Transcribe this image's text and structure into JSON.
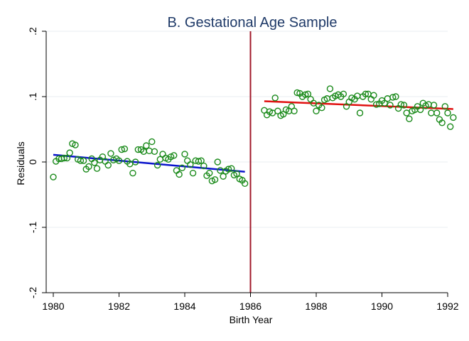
{
  "chart_data": {
    "type": "scatter",
    "title": "B. Gestational Age Sample",
    "xlabel": "Birth Year",
    "ylabel": "Residuals",
    "xlim": [
      1980,
      1992
    ],
    "ylim": [
      -0.2,
      0.2
    ],
    "xticks": [
      1980,
      1982,
      1984,
      1986,
      1988,
      1990,
      1992
    ],
    "xtick_labels": [
      "1980",
      "1982",
      "1984",
      "1986",
      "1988",
      "1990",
      "1992"
    ],
    "yticks": [
      -0.2,
      -0.1,
      0,
      0.1,
      0.2
    ],
    "ytick_labels": [
      "-.2",
      "-.1",
      "0",
      ".1",
      ".2"
    ],
    "grid": "horizontal",
    "cutoff": {
      "x": 1986,
      "color": "#a0182a"
    },
    "marker_color": "#1a8a1a",
    "series": [
      {
        "points": [
          [
            1980.0,
            -0.023
          ],
          [
            1980.08,
            0.001
          ],
          [
            1980.17,
            0.005
          ],
          [
            1980.25,
            0.005
          ],
          [
            1980.33,
            0.006
          ],
          [
            1980.42,
            0.006
          ],
          [
            1980.5,
            0.014
          ],
          [
            1980.58,
            0.028
          ],
          [
            1980.67,
            0.026
          ],
          [
            1980.75,
            0.004
          ],
          [
            1980.83,
            0.002
          ],
          [
            1980.92,
            0.002
          ],
          [
            1981.0,
            -0.011
          ],
          [
            1981.08,
            -0.007
          ],
          [
            1981.17,
            0.005
          ],
          [
            1981.25,
            -0.001
          ],
          [
            1981.33,
            -0.01
          ],
          [
            1981.42,
            0.003
          ],
          [
            1981.5,
            0.008
          ],
          [
            1981.58,
            0.001
          ],
          [
            1981.67,
            -0.005
          ],
          [
            1981.75,
            0.013
          ],
          [
            1981.83,
            0.003
          ],
          [
            1981.92,
            0.005
          ],
          [
            1982.0,
            0.002
          ],
          [
            1982.08,
            0.019
          ],
          [
            1982.17,
            0.02
          ],
          [
            1982.25,
            0.001
          ],
          [
            1982.33,
            -0.003
          ],
          [
            1982.42,
            -0.017
          ],
          [
            1982.5,
            0.0
          ],
          [
            1982.58,
            0.019
          ],
          [
            1982.67,
            0.019
          ],
          [
            1982.75,
            0.016
          ],
          [
            1982.83,
            0.025
          ],
          [
            1982.92,
            0.017
          ],
          [
            1983.0,
            0.031
          ],
          [
            1983.08,
            0.016
          ],
          [
            1983.17,
            -0.005
          ],
          [
            1983.25,
            0.004
          ],
          [
            1983.33,
            0.012
          ],
          [
            1983.42,
            0.006
          ],
          [
            1983.5,
            0.004
          ],
          [
            1983.58,
            0.008
          ],
          [
            1983.67,
            0.01
          ],
          [
            1983.75,
            -0.013
          ],
          [
            1983.83,
            -0.019
          ],
          [
            1983.92,
            -0.009
          ],
          [
            1984.0,
            0.012
          ],
          [
            1984.08,
            0.002
          ],
          [
            1984.17,
            -0.004
          ],
          [
            1984.25,
            -0.017
          ],
          [
            1984.33,
            0.002
          ],
          [
            1984.42,
            0.001
          ],
          [
            1984.5,
            0.002
          ],
          [
            1984.58,
            -0.006
          ],
          [
            1984.67,
            -0.021
          ],
          [
            1984.75,
            -0.017
          ],
          [
            1984.83,
            -0.029
          ],
          [
            1984.92,
            -0.027
          ],
          [
            1985.0,
            0.0
          ],
          [
            1985.08,
            -0.013
          ],
          [
            1985.17,
            -0.022
          ],
          [
            1985.25,
            -0.014
          ],
          [
            1985.33,
            -0.011
          ],
          [
            1985.42,
            -0.01
          ],
          [
            1985.5,
            -0.02
          ],
          [
            1985.58,
            -0.018
          ],
          [
            1985.67,
            -0.026
          ],
          [
            1985.75,
            -0.028
          ],
          [
            1985.83,
            -0.033
          ],
          [
            1986.42,
            0.079
          ],
          [
            1986.5,
            0.072
          ],
          [
            1986.58,
            0.077
          ],
          [
            1986.67,
            0.075
          ],
          [
            1986.75,
            0.098
          ],
          [
            1986.83,
            0.078
          ],
          [
            1986.92,
            0.071
          ],
          [
            1987.0,
            0.073
          ],
          [
            1987.08,
            0.08
          ],
          [
            1987.17,
            0.078
          ],
          [
            1987.25,
            0.085
          ],
          [
            1987.33,
            0.078
          ],
          [
            1987.42,
            0.106
          ],
          [
            1987.5,
            0.105
          ],
          [
            1987.58,
            0.1
          ],
          [
            1987.67,
            0.103
          ],
          [
            1987.75,
            0.104
          ],
          [
            1987.83,
            0.096
          ],
          [
            1987.92,
            0.09
          ],
          [
            1988.0,
            0.078
          ],
          [
            1988.08,
            0.087
          ],
          [
            1988.17,
            0.083
          ],
          [
            1988.25,
            0.095
          ],
          [
            1988.33,
            0.097
          ],
          [
            1988.42,
            0.112
          ],
          [
            1988.5,
            0.098
          ],
          [
            1988.58,
            0.101
          ],
          [
            1988.67,
            0.103
          ],
          [
            1988.75,
            0.1
          ],
          [
            1988.83,
            0.104
          ],
          [
            1988.92,
            0.085
          ],
          [
            1989.0,
            0.092
          ],
          [
            1989.08,
            0.098
          ],
          [
            1989.17,
            0.096
          ],
          [
            1989.25,
            0.101
          ],
          [
            1989.33,
            0.075
          ],
          [
            1989.42,
            0.1
          ],
          [
            1989.5,
            0.104
          ],
          [
            1989.58,
            0.104
          ],
          [
            1989.67,
            0.096
          ],
          [
            1989.75,
            0.102
          ],
          [
            1989.83,
            0.088
          ],
          [
            1989.92,
            0.089
          ],
          [
            1990.0,
            0.094
          ],
          [
            1990.08,
            0.09
          ],
          [
            1990.17,
            0.097
          ],
          [
            1990.25,
            0.087
          ],
          [
            1990.33,
            0.099
          ],
          [
            1990.42,
            0.1
          ],
          [
            1990.5,
            0.082
          ],
          [
            1990.58,
            0.088
          ],
          [
            1990.67,
            0.087
          ],
          [
            1990.75,
            0.075
          ],
          [
            1990.83,
            0.066
          ],
          [
            1990.92,
            0.078
          ],
          [
            1991.0,
            0.08
          ],
          [
            1991.08,
            0.085
          ],
          [
            1991.17,
            0.08
          ],
          [
            1991.25,
            0.09
          ],
          [
            1991.33,
            0.086
          ],
          [
            1991.42,
            0.088
          ],
          [
            1991.5,
            0.075
          ],
          [
            1991.58,
            0.087
          ],
          [
            1991.67,
            0.075
          ],
          [
            1991.75,
            0.065
          ],
          [
            1991.83,
            0.06
          ],
          [
            1991.92,
            0.085
          ],
          [
            1992.0,
            0.075
          ],
          [
            1992.08,
            0.054
          ],
          [
            1992.17,
            0.068
          ]
        ]
      }
    ],
    "fit_lines": [
      {
        "x": [
          1980.0,
          1985.83
        ],
        "y": [
          0.011,
          -0.015
        ],
        "color": "#0a14cc"
      },
      {
        "x": [
          1986.42,
          1992.17
        ],
        "y": [
          0.093,
          0.081
        ],
        "color": "#e01010"
      }
    ]
  }
}
